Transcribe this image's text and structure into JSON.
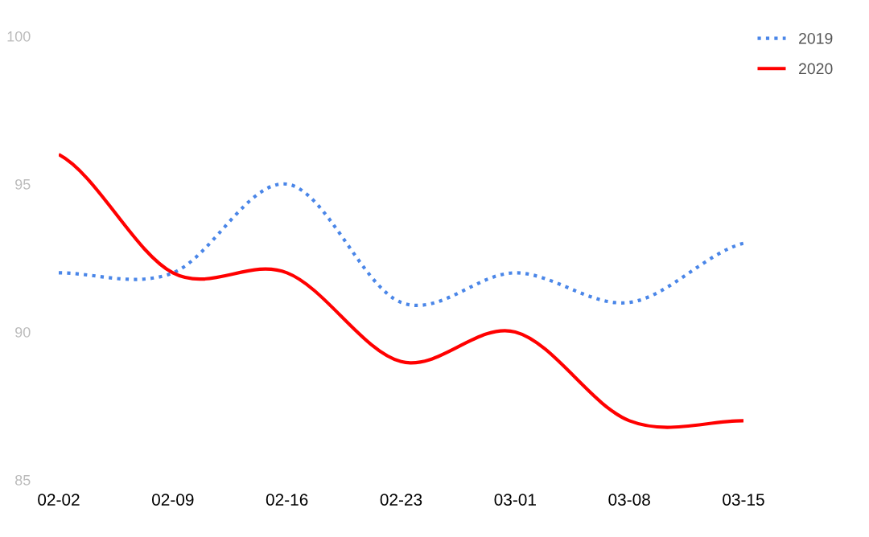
{
  "chart_data": {
    "type": "line",
    "categories": [
      "02-02",
      "02-09",
      "02-16",
      "02-23",
      "03-01",
      "03-08",
      "03-15"
    ],
    "series": [
      {
        "name": "2019",
        "color": "#4a86e8",
        "line_style": "dotted",
        "values": [
          92,
          92,
          95,
          91,
          92,
          91,
          93
        ]
      },
      {
        "name": "2020",
        "color": "#ff0000",
        "line_style": "solid",
        "values": [
          96,
          92,
          92,
          89,
          90,
          87,
          87
        ]
      }
    ],
    "ylim": [
      85,
      100
    ],
    "yticks": [
      85,
      90,
      95,
      100
    ],
    "legend": "top right",
    "marker": "none"
  }
}
